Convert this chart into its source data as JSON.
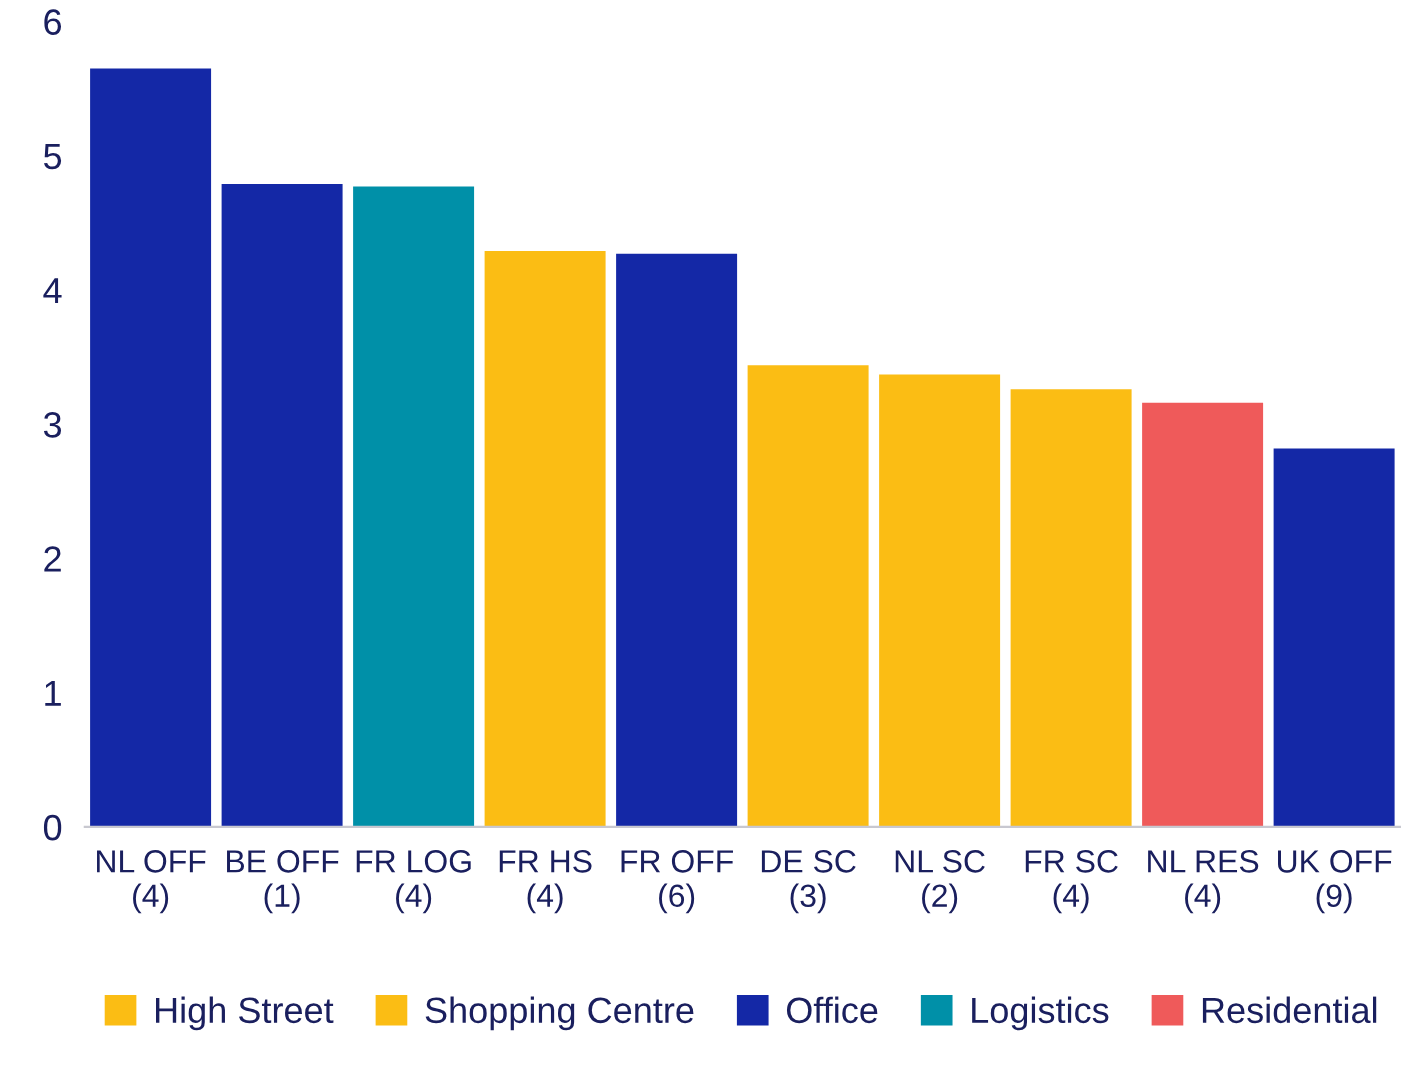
{
  "chart_data": {
    "type": "bar",
    "categories": [
      "NL OFF\n(4)",
      "BE OFF\n(1)",
      "FR LOG\n(4)",
      "FR HS\n(4)",
      "FR OFF\n(6)",
      "DE SC\n(3)",
      "NL SC\n(2)",
      "FR SC\n(4)",
      "NL RES\n(4)",
      "UK OFF\n(9)"
    ],
    "series": [
      {
        "name": "High Street",
        "color": "#fbbd14",
        "values": [
          null,
          null,
          null,
          4.29,
          null,
          null,
          null,
          null,
          null,
          null
        ]
      },
      {
        "name": "Shopping Centre",
        "color": "#fbbd14",
        "values": [
          null,
          null,
          null,
          null,
          null,
          3.44,
          3.37,
          3.26,
          null,
          null
        ]
      },
      {
        "name": "Office",
        "color": "#1428a6",
        "values": [
          5.65,
          4.79,
          null,
          null,
          4.27,
          null,
          null,
          null,
          null,
          2.82
        ]
      },
      {
        "name": "Logistics",
        "color": "#0090a8",
        "values": [
          null,
          null,
          4.77,
          null,
          null,
          null,
          null,
          null,
          null,
          null
        ]
      },
      {
        "name": "Residential",
        "color": "#ef5a5a",
        "values": [
          null,
          null,
          null,
          null,
          null,
          null,
          null,
          null,
          3.16,
          null
        ]
      }
    ],
    "ylim": [
      0,
      6
    ],
    "yticks": [
      0,
      1,
      2,
      3,
      4,
      5,
      6
    ],
    "grid": false,
    "legend": "bottom"
  }
}
